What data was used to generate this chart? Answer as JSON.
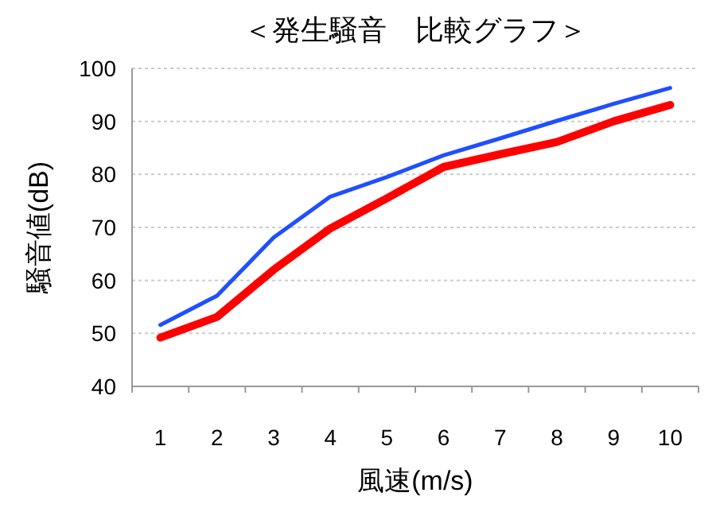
{
  "chart_data": {
    "type": "line",
    "title": "＜発生騒音　比較グラフ＞",
    "xlabel": "風速(m/s)",
    "ylabel": "騒音値(dB)",
    "categories": [
      "1",
      "2",
      "3",
      "4",
      "5",
      "6",
      "7",
      "8",
      "9",
      "10"
    ],
    "series": [
      {
        "color": "#1f4fff",
        "values": [
          51.6,
          57.1,
          68.1,
          75.8,
          79.5,
          83.6,
          86.8,
          90.1,
          93.3,
          96.3
        ]
      },
      {
        "color": "#ff0000",
        "values": [
          49.2,
          53.1,
          62.0,
          69.8,
          75.5,
          81.4,
          83.8,
          86.1,
          90.0,
          93.1
        ]
      }
    ],
    "ylim": [
      40,
      100
    ],
    "yticks": [
      40,
      50,
      60,
      70,
      80,
      90,
      100
    ],
    "grid": "y",
    "marker": "none",
    "line_style": "solid"
  }
}
